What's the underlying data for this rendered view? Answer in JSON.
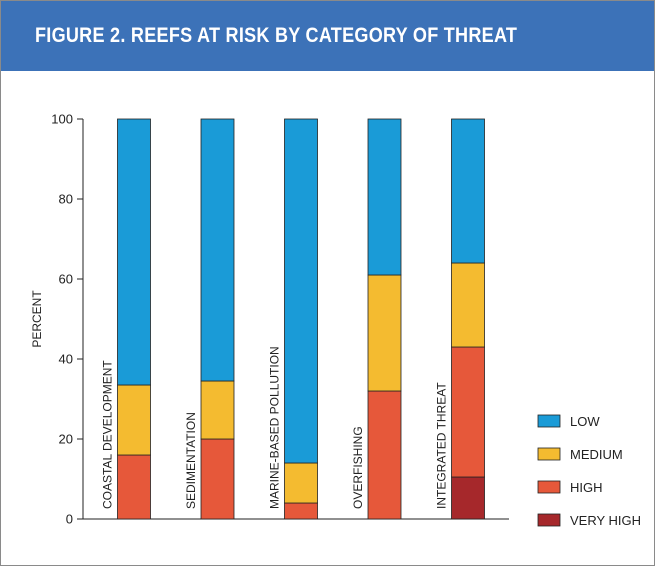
{
  "figure": {
    "title": "FIGURE 2.  REEFS AT RISK BY CATEGORY OF THREAT"
  },
  "colors": {
    "header_bg": "#3c72b8",
    "low": "#1a9bd7",
    "medium": "#f4bb30",
    "high": "#e6583a",
    "very_high": "#a6282b"
  },
  "chart_data": {
    "type": "bar",
    "stacked": true,
    "categories": [
      "COASTAL DEVELOPMENT",
      "SEDIMENTATION",
      "MARINE-BASED POLLUTION",
      "OVERFISHING",
      "INTEGRATED THREAT"
    ],
    "series": [
      {
        "name": "VERY HIGH",
        "values": [
          0,
          0,
          0,
          0,
          10.5
        ]
      },
      {
        "name": "HIGH",
        "values": [
          16,
          20,
          4,
          32,
          32.5
        ]
      },
      {
        "name": "MEDIUM",
        "values": [
          17.5,
          14.5,
          10,
          29,
          21
        ]
      },
      {
        "name": "LOW",
        "values": [
          66.5,
          65.5,
          86,
          39,
          36
        ]
      }
    ],
    "ylabel": "PERCENT",
    "xlabel": "",
    "ylim": [
      0,
      100
    ],
    "yticks": [
      0,
      20,
      40,
      60,
      80,
      100
    ],
    "grid": false,
    "legend": {
      "position": "right",
      "entries": [
        "LOW",
        "MEDIUM",
        "HIGH",
        "VERY HIGH"
      ]
    }
  }
}
